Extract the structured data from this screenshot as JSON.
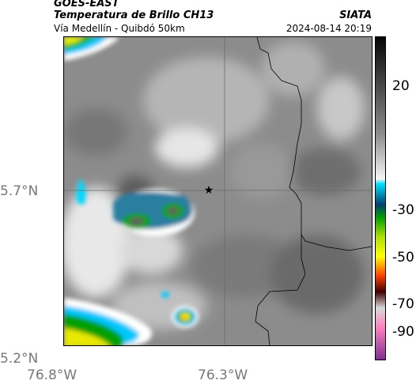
{
  "header": {
    "agency": "GOES-EAST",
    "product": "Temperatura de Brillo CH13",
    "route": "Vía Medellín - Quibdó 50km",
    "organization": "SIATA",
    "datetime": "2024-08-14 20:19"
  },
  "map": {
    "lat_ticks": [
      "5.7°N",
      "5.2°N"
    ],
    "lon_ticks": [
      "76.8°W",
      "76.3°W"
    ],
    "marker": {
      "type": "star-icon",
      "label": ""
    }
  },
  "colorbar": {
    "labels": [
      "20",
      "-30",
      "-50",
      "-70",
      "-90"
    ],
    "colors": [
      "#0a0a0a",
      "#9a9a9a",
      "#ffffff",
      "#00d8ff",
      "#00a000",
      "#ffff00",
      "#ff0000",
      "#ff00ff",
      "#d0d0d0",
      "#ff66cc"
    ]
  }
}
